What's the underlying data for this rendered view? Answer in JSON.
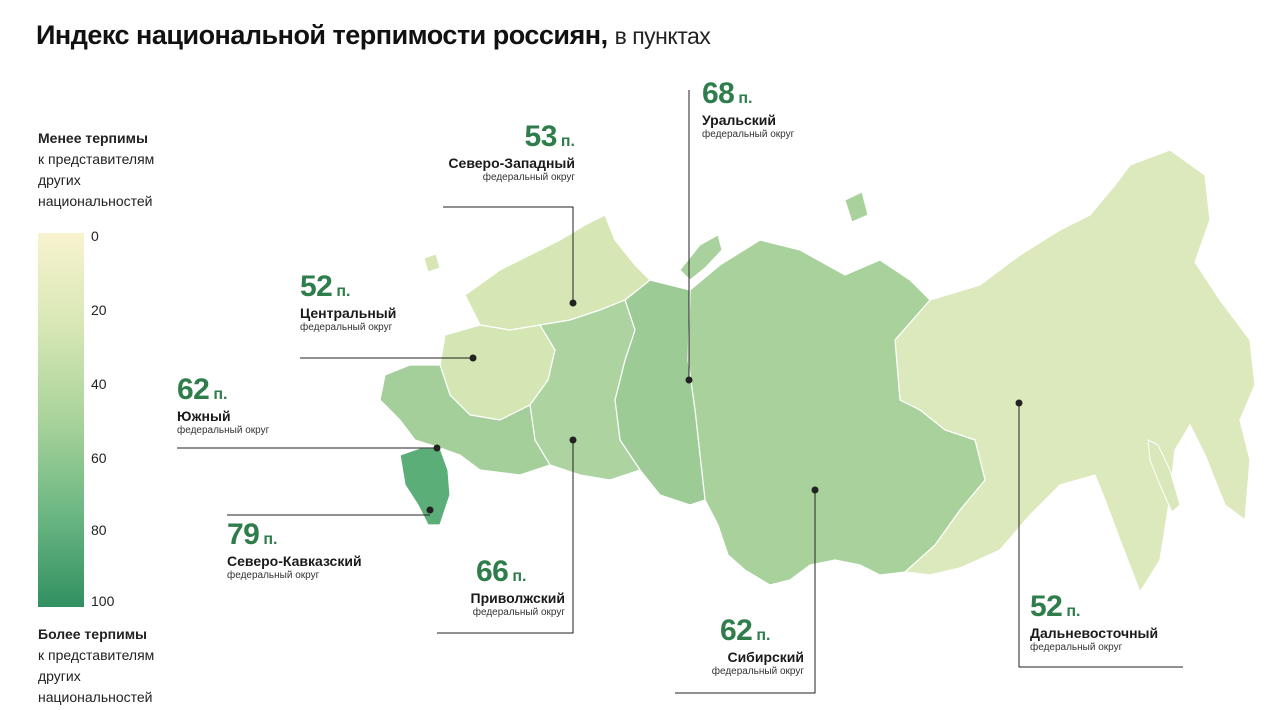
{
  "header": {
    "title": "Индекс национальной терпимости россиян,",
    "unit": "в пунктах"
  },
  "legend": {
    "top_title": "Менее терпимы",
    "top_sub1": "к представителям",
    "top_sub2": "других",
    "top_sub3": "национальностей",
    "bottom_title": "Более терпимы",
    "bottom_sub1": "к представителям",
    "bottom_sub2": "других",
    "bottom_sub3": "национальностей",
    "ticks": [
      "0",
      "20",
      "40",
      "60",
      "80",
      "100"
    ],
    "scale_min": 0,
    "scale_max": 100,
    "colors": {
      "low": "#f8f3cf",
      "high": "#319061"
    }
  },
  "districts": [
    {
      "id": "nw",
      "value": "53",
      "unit": "п.",
      "name": "Северо-Западный",
      "sub": "федеральный округ"
    },
    {
      "id": "ural",
      "value": "68",
      "unit": "п.",
      "name": "Уральский",
      "sub": "федеральный округ"
    },
    {
      "id": "central",
      "value": "52",
      "unit": "п.",
      "name": "Центральный",
      "sub": "федеральный округ"
    },
    {
      "id": "south",
      "value": "62",
      "unit": "п.",
      "name": "Южный",
      "sub": "федеральный округ"
    },
    {
      "id": "ncauc",
      "value": "79",
      "unit": "п.",
      "name": "Северо-Кавказский",
      "sub": "федеральный округ"
    },
    {
      "id": "volga",
      "value": "66",
      "unit": "п.",
      "name": "Приволжский",
      "sub": "федеральный округ"
    },
    {
      "id": "siberia",
      "value": "62",
      "unit": "п.",
      "name": "Сибирский",
      "sub": "федеральный округ"
    },
    {
      "id": "fareast",
      "value": "52",
      "unit": "п.",
      "name": "Дальневосточный",
      "sub": "федеральный округ"
    }
  ]
}
